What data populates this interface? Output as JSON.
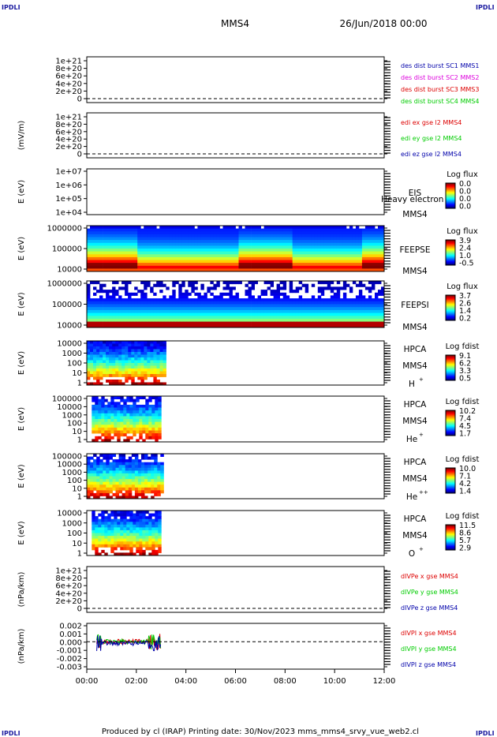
{
  "header": {
    "corner_label": "IPDLI",
    "spacecraft": "MMS4",
    "datetime": "26/Jun/2018 00:00"
  },
  "footer": "Produced by cl (IRAP)   Printing date: 30/Nov/2023   mms_mms4_srvy_vue_web2.cl",
  "colors": {
    "red": "#dd0000",
    "magenta": "#dd00dd",
    "green": "#00cc00",
    "blue": "#0000aa"
  },
  "chart_data": [
    {
      "type": "line",
      "name": "dist",
      "yticks": [
        "1e+21",
        "8e+20",
        "6e+20",
        "4e+20",
        "2e+20",
        "0"
      ],
      "ylabel": "",
      "legend": [
        {
          "text": "des dist burst SC1 MMS1",
          "color": "#0000aa"
        },
        {
          "text": "des dist burst SC2 MMS2",
          "color": "#dd00dd"
        },
        {
          "text": "des dist burst SC3 MMS3",
          "color": "#dd0000"
        },
        {
          "text": "des dist burst SC4 MMS4",
          "color": "#00cc00"
        }
      ],
      "zero_line": true
    },
    {
      "type": "line",
      "name": "edi",
      "yticks": [
        "1e+21",
        "8e+20",
        "6e+20",
        "4e+20",
        "2e+20",
        "0"
      ],
      "ylabel": "(mV/m)",
      "legend": [
        {
          "text": "edi ex gse l2 MMS4",
          "color": "#dd0000"
        },
        {
          "text": "edi ey gse l2 MMS4",
          "color": "#00cc00"
        },
        {
          "text": "edi ez gse l2 MMS4",
          "color": "#0000aa"
        }
      ],
      "zero_line": true
    },
    {
      "type": "heatmap",
      "name": "eis",
      "yticks": [
        "1e+07",
        "1e+06",
        "1e+05",
        "1e+04"
      ],
      "ylabel": "E (eV)",
      "instrument": [
        "EIS",
        "MMS4"
      ],
      "overlap_text": "Heavy electron to",
      "cbar_title": "Log flux",
      "cbar_ticks": [
        "0.0",
        "0.0",
        "0.0",
        "0.0"
      ],
      "coverage": [
        0,
        0
      ]
    },
    {
      "type": "heatmap",
      "name": "feepse",
      "yticks": [
        "1000000",
        "100000",
        "10000"
      ],
      "ylabel": "E (eV)",
      "instrument": [
        "FEEPSE",
        "MMS4"
      ],
      "cbar_title": "Log flux",
      "cbar_ticks": [
        "3.9",
        "2.4",
        "1.0",
        "-0.5"
      ],
      "coverage": [
        0,
        12
      ]
    },
    {
      "type": "heatmap",
      "name": "feepsi",
      "yticks": [
        "1000000",
        "100000",
        "10000"
      ],
      "ylabel": "E (eV)",
      "instrument": [
        "FEEPSI",
        "MMS4"
      ],
      "cbar_title": "Log flux",
      "cbar_ticks": [
        "3.7",
        "2.6",
        "1.4",
        "0.2"
      ],
      "coverage": [
        0,
        12
      ]
    },
    {
      "type": "heatmap",
      "name": "hpca_h",
      "yticks": [
        "10000",
        "1000",
        "100",
        "10",
        "1"
      ],
      "ylabel": "E (eV)",
      "instrument": [
        "HPCA",
        "MMS4"
      ],
      "species": "H",
      "charge": "+",
      "cbar_title": "Log fdist",
      "cbar_ticks": [
        "9.1",
        "6.2",
        "3.3",
        "0.5"
      ],
      "coverage": [
        0,
        3.2
      ]
    },
    {
      "type": "heatmap",
      "name": "hpca_he",
      "yticks": [
        "100000",
        "10000",
        "1000",
        "100",
        "10",
        "1"
      ],
      "ylabel": "E (eV)",
      "instrument": [
        "HPCA",
        "MMS4"
      ],
      "species": "He",
      "charge": "+",
      "cbar_title": "Log fdist",
      "cbar_ticks": [
        "10.2",
        "7.4",
        "4.5",
        "1.7"
      ],
      "coverage": [
        0.2,
        3.0
      ]
    },
    {
      "type": "heatmap",
      "name": "hpca_hepp",
      "yticks": [
        "100000",
        "10000",
        "1000",
        "100",
        "10",
        "1"
      ],
      "ylabel": "E (eV)",
      "instrument": [
        "HPCA",
        "MMS4"
      ],
      "species": "He",
      "charge": "++",
      "cbar_title": "Log fdist",
      "cbar_ticks": [
        "10.0",
        "7.1",
        "4.2",
        "1.4"
      ],
      "coverage": [
        0,
        3.1
      ]
    },
    {
      "type": "heatmap",
      "name": "hpca_o",
      "yticks": [
        "10000",
        "1000",
        "100",
        "10",
        "1"
      ],
      "ylabel": "E (eV)",
      "instrument": [
        "HPCA",
        "MMS4"
      ],
      "species": "O",
      "charge": "+",
      "cbar_title": "Log fdist",
      "cbar_ticks": [
        "11.5",
        "8.6",
        "5.7",
        "2.9"
      ],
      "coverage": [
        0.2,
        3.0
      ]
    },
    {
      "type": "line",
      "name": "divpe",
      "yticks": [
        "1e+21",
        "8e+20",
        "6e+20",
        "4e+20",
        "2e+20",
        "0"
      ],
      "ylabel": "(nPa/km)",
      "legend": [
        {
          "text": "dIVPe x gse MMS4",
          "color": "#dd0000"
        },
        {
          "text": "dIVPe y gse MMS4",
          "color": "#00cc00"
        },
        {
          "text": "dIVPe z gse MMS4",
          "color": "#0000aa"
        }
      ],
      "zero_line": true
    },
    {
      "type": "line",
      "name": "divpi",
      "yticks": [
        "0.002",
        "0.001",
        "0.000",
        "-0.001",
        "-0.002",
        "-0.003"
      ],
      "ylabel": "(nPa/km)",
      "legend": [
        {
          "text": "dIVPI x gse MMS4",
          "color": "#dd0000"
        },
        {
          "text": "dIVPI y gse MMS4",
          "color": "#00cc00"
        },
        {
          "text": "dIVPI z gse MMS4",
          "color": "#0000aa"
        }
      ],
      "zero_line": true,
      "coverage": [
        0.4,
        3.0
      ]
    }
  ],
  "xaxis": {
    "ticks": [
      "00:00",
      "02:00",
      "04:00",
      "06:00",
      "08:00",
      "10:00",
      "12:00"
    ],
    "range_hours": [
      0,
      12
    ]
  }
}
